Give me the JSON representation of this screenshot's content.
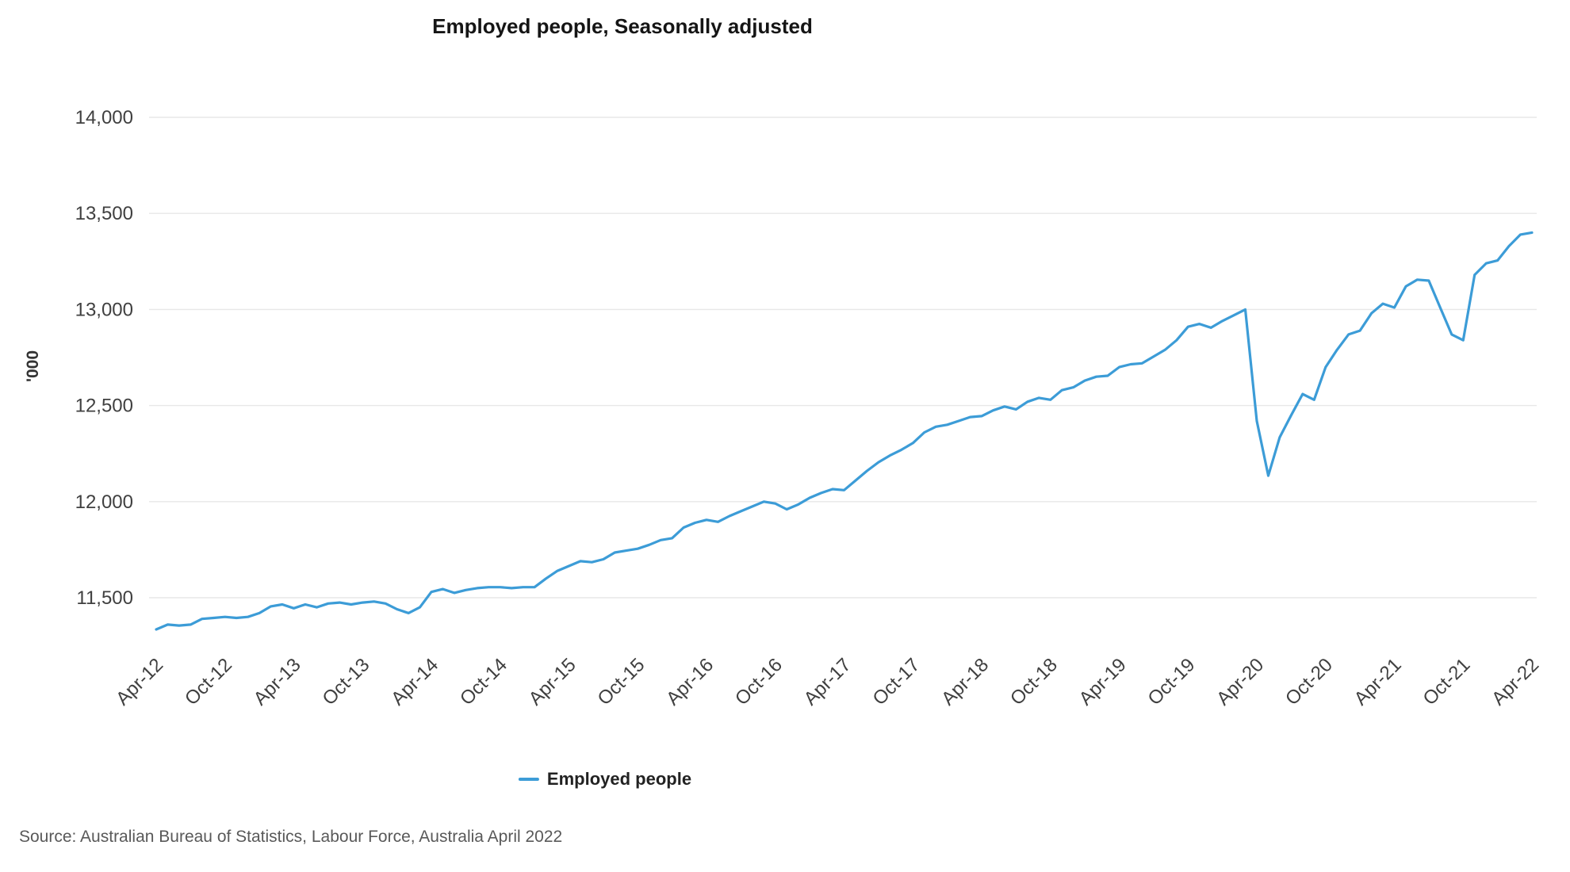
{
  "page": {
    "source_note": "Source: Australian Bureau of Statistics, Labour Force, Australia April 2022"
  },
  "chart_data": {
    "type": "line",
    "title": "Employed people, Seasonally adjusted",
    "ylabel": "'000",
    "frequency": "monthly",
    "x_start": "Apr-12",
    "x_end": "Apr-22",
    "x_tick_labels": [
      "Apr-12",
      "Oct-12",
      "Apr-13",
      "Oct-13",
      "Apr-14",
      "Oct-14",
      "Apr-15",
      "Oct-15",
      "Apr-16",
      "Oct-16",
      "Apr-17",
      "Oct-17",
      "Apr-18",
      "Oct-18",
      "Apr-19",
      "Oct-19",
      "Apr-20",
      "Oct-20",
      "Apr-21",
      "Oct-21",
      "Apr-22"
    ],
    "x_tick_every": 6,
    "y_ticks": [
      11500,
      12000,
      12500,
      13000,
      13500,
      14000
    ],
    "ylim": [
      11500,
      14000
    ],
    "grid": "horizontal",
    "legend_position": "bottom",
    "series": [
      {
        "name": "Employed people",
        "color": "#3c9cd7",
        "values": [
          11335,
          11360,
          11355,
          11360,
          11390,
          11395,
          11400,
          11395,
          11400,
          11420,
          11455,
          11465,
          11445,
          11465,
          11450,
          11470,
          11475,
          11465,
          11475,
          11480,
          11470,
          11440,
          11420,
          11450,
          11530,
          11545,
          11525,
          11540,
          11550,
          11555,
          11555,
          11550,
          11555,
          11555,
          11600,
          11640,
          11665,
          11690,
          11685,
          11700,
          11735,
          11745,
          11755,
          11775,
          11800,
          11810,
          11865,
          11890,
          11905,
          11895,
          11925,
          11950,
          11975,
          12000,
          11990,
          11960,
          11985,
          12020,
          12045,
          12065,
          12060,
          12110,
          12160,
          12205,
          12240,
          12270,
          12305,
          12360,
          12390,
          12400,
          12420,
          12440,
          12445,
          12475,
          12495,
          12480,
          12520,
          12540,
          12530,
          12580,
          12595,
          12630,
          12650,
          12655,
          12700,
          12715,
          12720,
          12755,
          12790,
          12840,
          12910,
          12925,
          12905,
          12940,
          12970,
          13000,
          12420,
          12135,
          12335,
          12450,
          12560,
          12530,
          12700,
          12790,
          12870,
          12890,
          12980,
          13030,
          13010,
          13120,
          13155,
          13150,
          13010,
          12870,
          12840,
          13180,
          13240,
          13255,
          13330,
          13390,
          13400
        ]
      }
    ]
  }
}
